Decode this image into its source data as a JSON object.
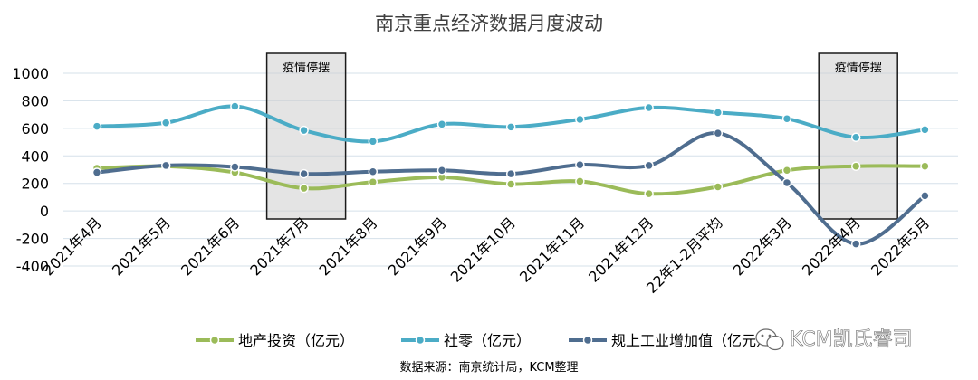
{
  "chart_data": {
    "type": "line",
    "title": "南京重点经济数据月度波动",
    "categories": [
      "2021年4月",
      "2021年5月",
      "2021年6月",
      "2021年7月",
      "2021年8月",
      "2021年9月",
      "2021年10月",
      "2021年11月",
      "2021年12月",
      "22年1-2月平均",
      "2022年3月",
      "2022年4月",
      "2022年5月"
    ],
    "ylim": [
      -400,
      1000
    ],
    "yticks": [
      -400,
      -200,
      0,
      200,
      400,
      600,
      800,
      1000
    ],
    "grid": true,
    "legend_position": "bottom",
    "series": [
      {
        "name": "地产投资（亿元）",
        "color": "#9bbb59",
        "values": [
          310,
          325,
          280,
          165,
          210,
          245,
          195,
          215,
          125,
          175,
          295,
          325,
          325
        ]
      },
      {
        "name": "社零（亿元）",
        "color": "#4bacc6",
        "values": [
          615,
          640,
          760,
          585,
          505,
          630,
          610,
          665,
          750,
          715,
          670,
          535,
          590
        ]
      },
      {
        "name": "规上工业增加值（亿元）",
        "color": "#4f6d8f",
        "values": [
          280,
          330,
          320,
          270,
          285,
          295,
          270,
          335,
          330,
          565,
          205,
          -240,
          110
        ]
      }
    ],
    "annotations": [
      {
        "label": "疫情停摆",
        "from": "2021年7月"
      },
      {
        "label": "疫情停摆",
        "from": "2022年4月"
      }
    ],
    "source": "数据来源：南京统计局，KCM整理"
  },
  "watermark": "KCM凯氏睿司"
}
